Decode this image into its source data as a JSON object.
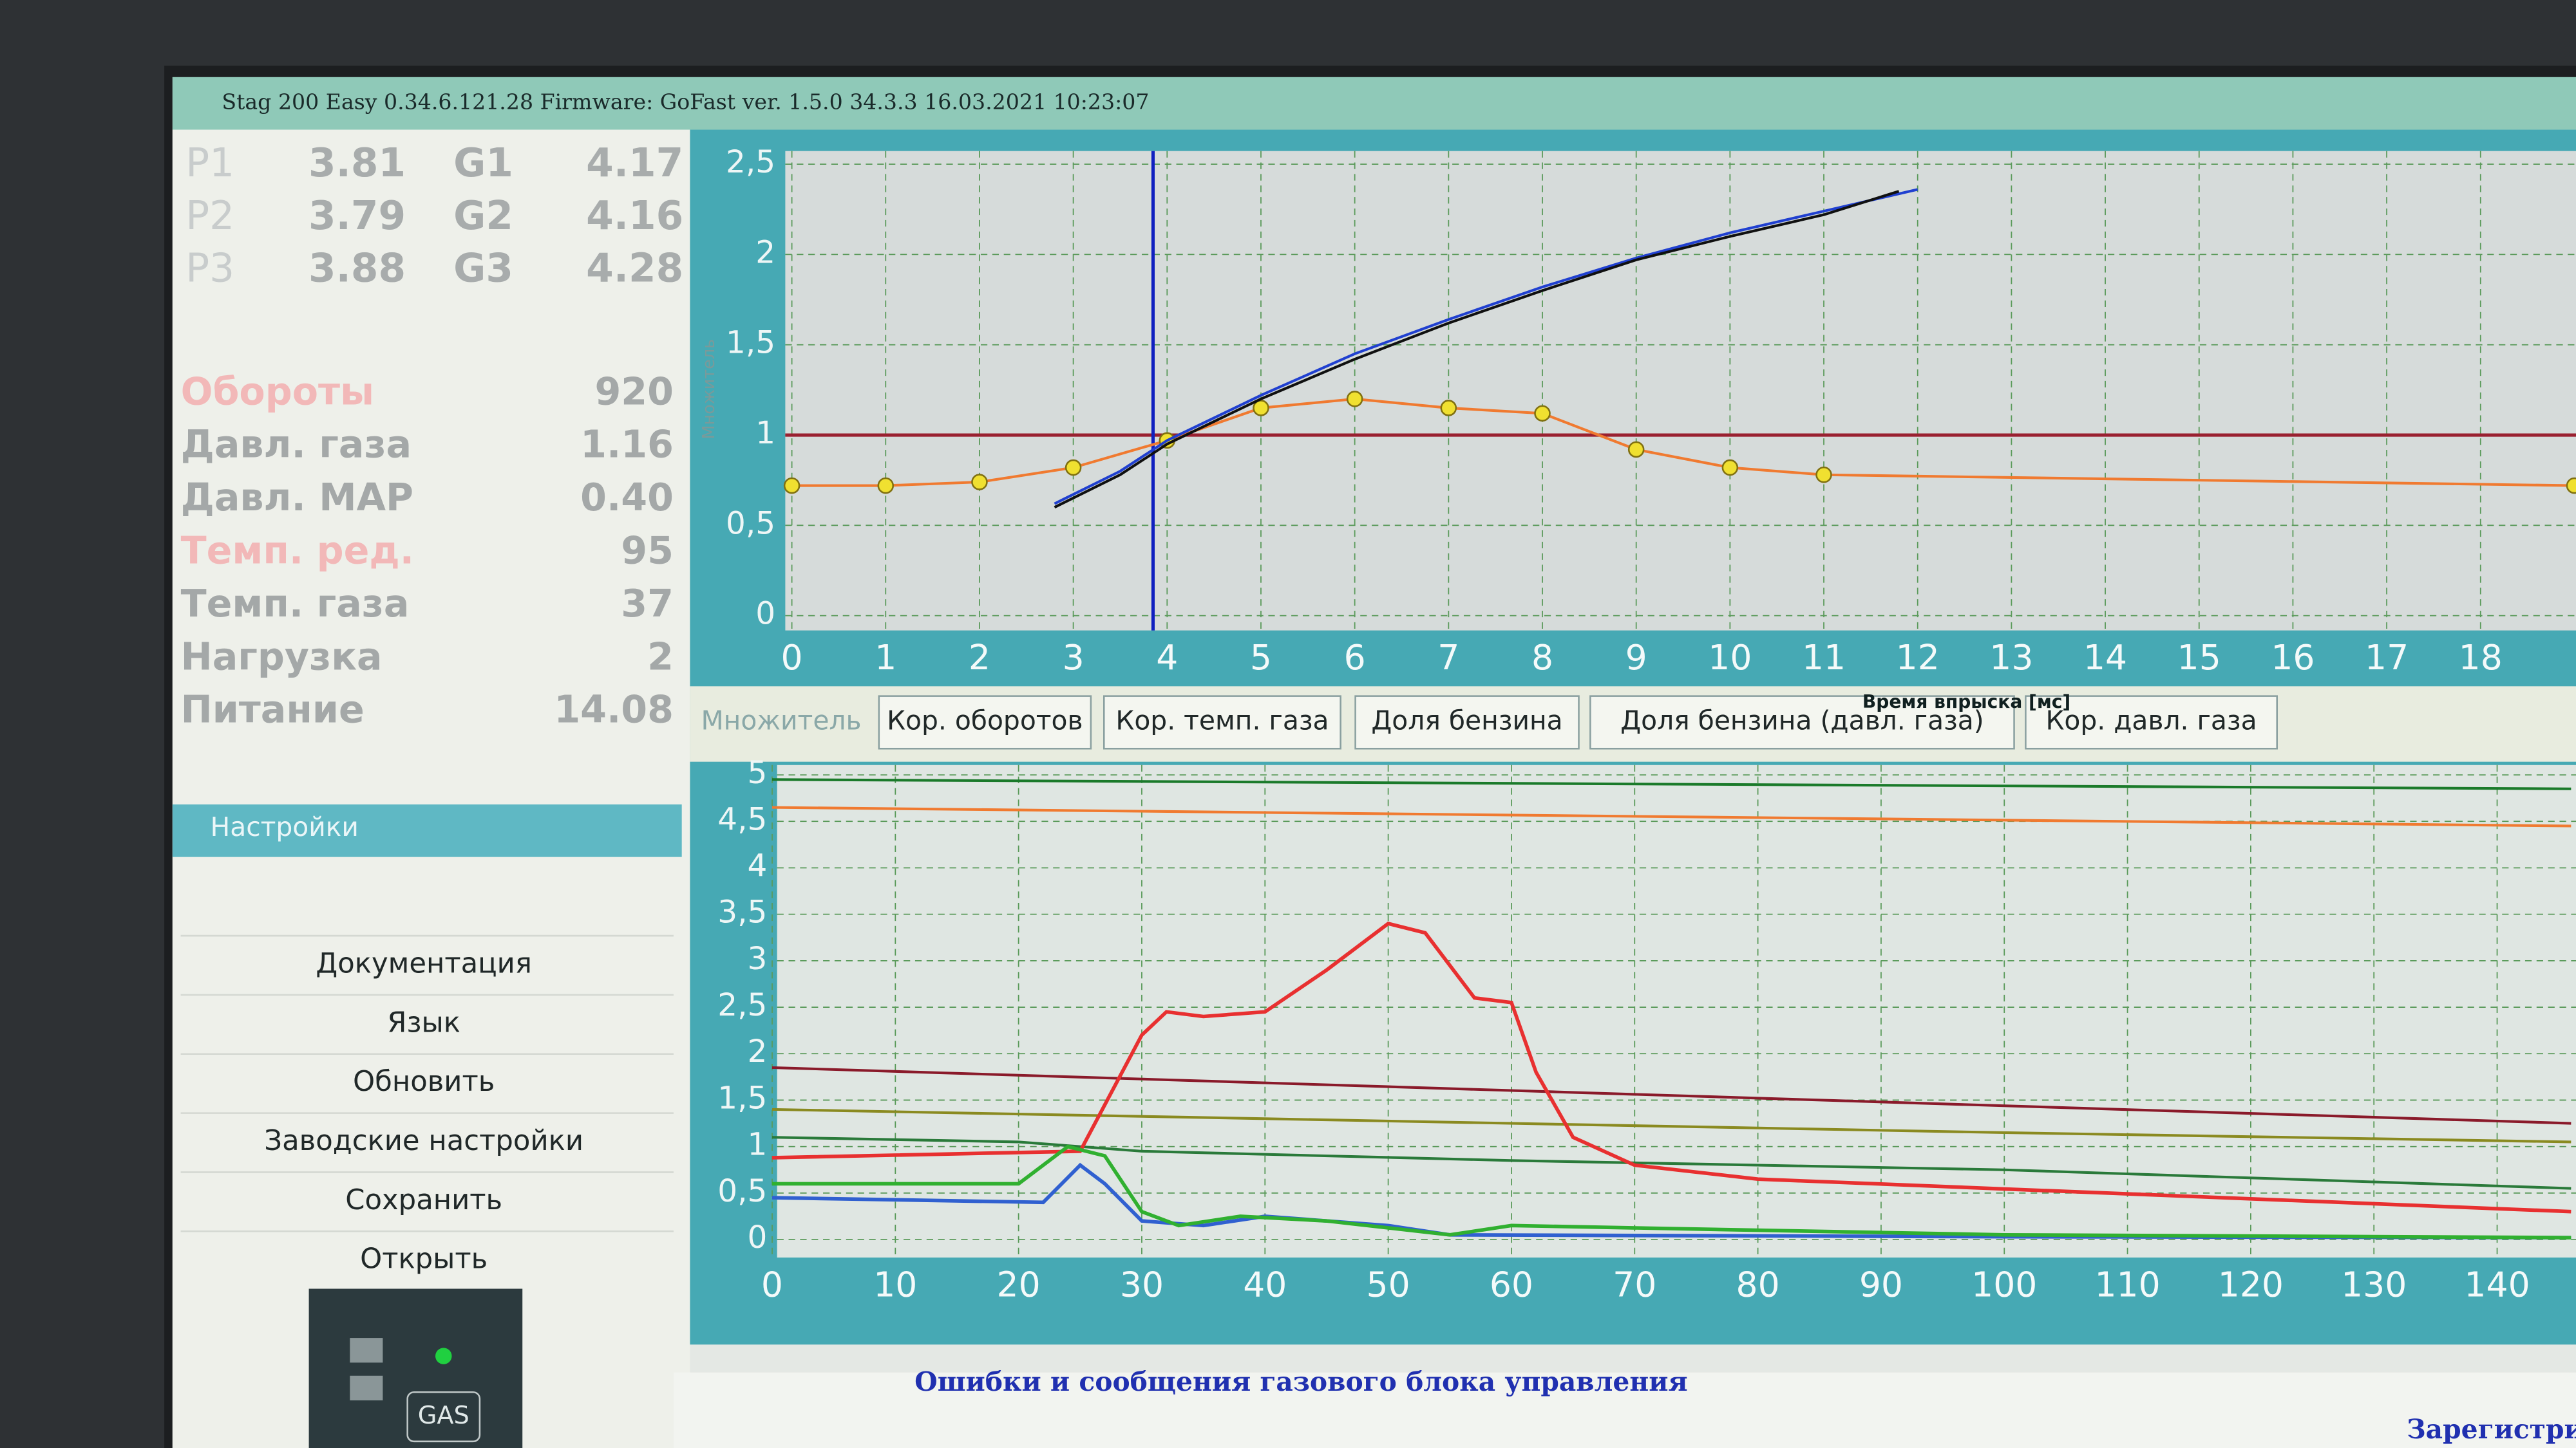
{
  "header": {
    "title": "Stag 200 Easy 0.34.6.121.28 Firmware: GoFast ver. 1.5.0 34.3.3 16.03.2021 10:23:07"
  },
  "injectors": [
    {
      "p": "P1",
      "p_value": "3.81",
      "g": "G1",
      "g_value": "4.17"
    },
    {
      "p": "P2",
      "p_value": "3.79",
      "g": "G2",
      "g_value": "4.16"
    },
    {
      "p": "P3",
      "p_value": "3.88",
      "g": "G3",
      "g_value": "4.28"
    }
  ],
  "readings": [
    {
      "label": "Обороты",
      "value": "920"
    },
    {
      "label": "Давл. газа",
      "value": "1.16"
    },
    {
      "label": "Давл. MAP",
      "value": "0.40"
    },
    {
      "label": "Темп. ред.",
      "value": "95"
    },
    {
      "label": "Темп. газа",
      "value": "37"
    },
    {
      "label": "Нагрузка",
      "value": "2"
    },
    {
      "label": "Питание",
      "value": "14.08"
    }
  ],
  "menu": {
    "section": "Настройки",
    "items": [
      "Документация",
      "Язык",
      "Обновить",
      "Заводские настройки",
      "Сохранить",
      "Открыть"
    ]
  },
  "indicator": {
    "label": "GAS"
  },
  "tabs": [
    "Множитель",
    "Кор. оборотов",
    "Кор. темп. газа",
    "Доля бензина",
    "Доля бензина (давл. газа)",
    "Кор. давл. газа"
  ],
  "messages": {
    "title": "Ошибки и сообщения газового блока управления",
    "register": "Зарегистри"
  },
  "chart_data": [
    {
      "type": "line",
      "x_label": "Время впрыска [мс]",
      "y_label": "Множитель",
      "xlim": [
        0,
        19
      ],
      "ylim": [
        0,
        2.5
      ],
      "xticks": [
        0,
        1,
        2,
        3,
        4,
        5,
        6,
        7,
        8,
        9,
        10,
        11,
        12,
        13,
        14,
        15,
        16,
        17,
        18
      ],
      "yticks": [
        0,
        {
          "value": 0.5,
          "label": "0,5"
        },
        1,
        {
          "value": 1.5,
          "label": "1,5"
        },
        2,
        {
          "value": 2.5,
          "label": "2,5"
        }
      ],
      "grid": true,
      "reference_line": 1,
      "marker_x": 3.85,
      "series": [
        {
          "color": "#f07a30",
          "markers": true,
          "x": [
            0,
            1,
            2,
            3,
            4,
            5,
            6,
            7,
            8,
            9,
            10,
            11,
            19
          ],
          "values": [
            0.72,
            0.72,
            0.74,
            0.82,
            0.97,
            1.15,
            1.2,
            1.15,
            1.12,
            0.92,
            0.82,
            0.78,
            0.72
          ]
        },
        {
          "color": "#2040d0",
          "markers": false,
          "x": [
            2.8,
            3.5,
            4,
            5,
            6,
            7,
            8,
            9,
            10,
            11,
            12
          ],
          "values": [
            0.62,
            0.8,
            0.97,
            1.22,
            1.45,
            1.64,
            1.82,
            1.98,
            2.12,
            2.24,
            2.36
          ]
        },
        {
          "color": "#101010",
          "markers": false,
          "x": [
            2.8,
            3.5,
            4,
            5,
            6,
            7,
            8,
            9,
            10,
            11,
            11.8
          ],
          "values": [
            0.6,
            0.78,
            0.95,
            1.2,
            1.42,
            1.62,
            1.8,
            1.97,
            2.1,
            2.22,
            2.35
          ]
        }
      ]
    },
    {
      "type": "line",
      "xlim": [
        0,
        146
      ],
      "ylim": [
        0,
        5
      ],
      "xticks": [
        0,
        10,
        20,
        30,
        40,
        50,
        60,
        70,
        80,
        90,
        100,
        110,
        120,
        130,
        140
      ],
      "yticks": [
        0,
        {
          "value": 0.5,
          "label": "0,5"
        },
        1,
        {
          "value": 1.5,
          "label": "1,5"
        },
        2,
        {
          "value": 2.5,
          "label": "2,5"
        },
        3,
        {
          "value": 3.5,
          "label": "3,5"
        },
        4,
        {
          "value": 4.5,
          "label": "4,5"
        },
        5
      ],
      "grid": true,
      "series": [
        {
          "color": "#1a7a2a",
          "x": [
            0,
            146
          ],
          "values": [
            4.95,
            4.85
          ]
        },
        {
          "color": "#f07a30",
          "x": [
            0,
            146
          ],
          "values": [
            4.65,
            4.45
          ]
        },
        {
          "color": "#8a1a2a",
          "x": [
            0,
            146
          ],
          "values": [
            1.85,
            1.25
          ]
        },
        {
          "color": "#8a8a20",
          "x": [
            0,
            40,
            100,
            146
          ],
          "values": [
            1.4,
            1.3,
            1.15,
            1.05
          ]
        },
        {
          "color": "#2a7a3a",
          "x": [
            0,
            20,
            25,
            30,
            60,
            100,
            146
          ],
          "values": [
            1.1,
            1.05,
            1.0,
            0.95,
            0.85,
            0.75,
            0.55
          ]
        },
        {
          "color": "#e83030",
          "x": [
            0,
            25,
            30,
            32,
            35,
            40,
            45,
            50,
            53,
            57,
            60,
            62,
            65,
            70,
            80,
            146
          ],
          "values": [
            0.88,
            0.95,
            2.2,
            2.45,
            2.4,
            2.45,
            2.9,
            3.4,
            3.3,
            2.6,
            2.55,
            1.8,
            1.1,
            0.8,
            0.65,
            0.3
          ]
        },
        {
          "color": "#3060d0",
          "x": [
            0,
            22,
            25,
            27,
            30,
            35,
            40,
            50,
            55,
            100,
            146
          ],
          "values": [
            0.45,
            0.4,
            0.8,
            0.6,
            0.2,
            0.15,
            0.25,
            0.15,
            0.05,
            0.03,
            0.02
          ]
        },
        {
          "color": "#30b030",
          "x": [
            0,
            20,
            24,
            27,
            30,
            33,
            38,
            45,
            55,
            60,
            100,
            146
          ],
          "values": [
            0.6,
            0.6,
            1.0,
            0.9,
            0.3,
            0.15,
            0.25,
            0.2,
            0.05,
            0.15,
            0.05,
            0.02
          ]
        }
      ]
    }
  ]
}
